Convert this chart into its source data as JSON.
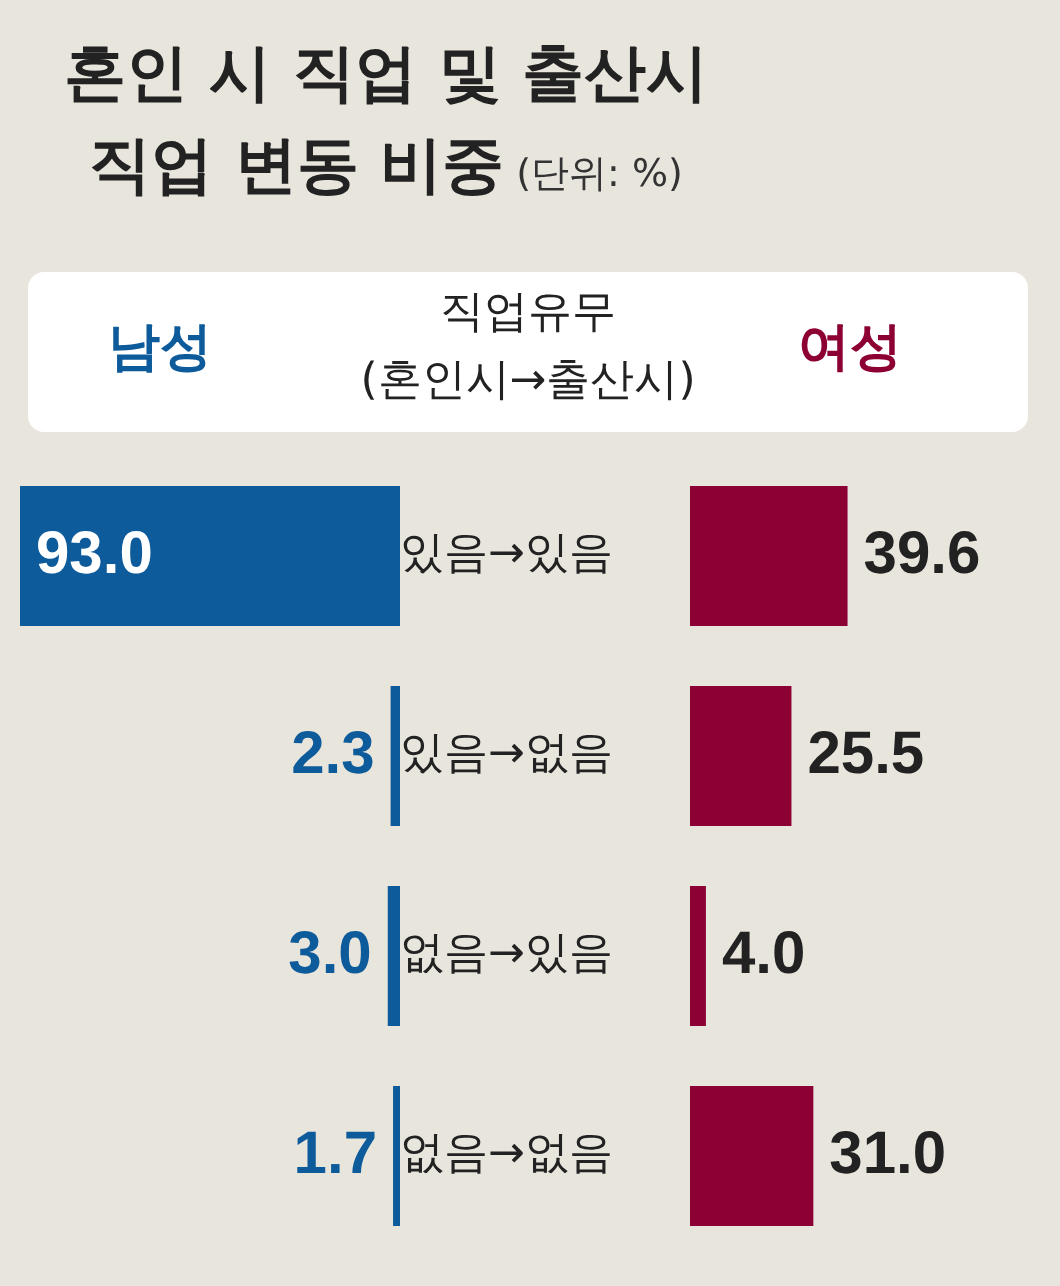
{
  "chart_data": [
    {
      "type": "bar",
      "orientation": "horizontal",
      "title": "혼인 시 직업 및 출산시\n직업 변동 비중",
      "subtitle": "(단위: %)",
      "ylabel": "직업유무\n(혼인시→출산시)",
      "legend": "top",
      "categories": [
        "있음→있음",
        "있음→없음",
        "없음→있음",
        "없음→없음"
      ],
      "series": [
        {
          "name": "남성",
          "color": "#0d5b9b",
          "values": [
            93.0,
            2.3,
            3.0,
            1.7
          ],
          "value_labels": [
            "93.0",
            "2.3",
            "3.0",
            "1.7"
          ]
        }
      ]
    },
    {
      "type": "bar",
      "orientation": "horizontal",
      "legend": "top",
      "tick_labels": false,
      "categories": [
        null,
        null,
        null,
        null
      ],
      "series": [
        {
          "name": "여성",
          "color": "#8c0033",
          "values": [
            39.6,
            25.5,
            4.0,
            31.0
          ],
          "value_labels": [
            "39.6",
            "25.5",
            "4.0",
            "31.0"
          ]
        }
      ]
    }
  ]
}
